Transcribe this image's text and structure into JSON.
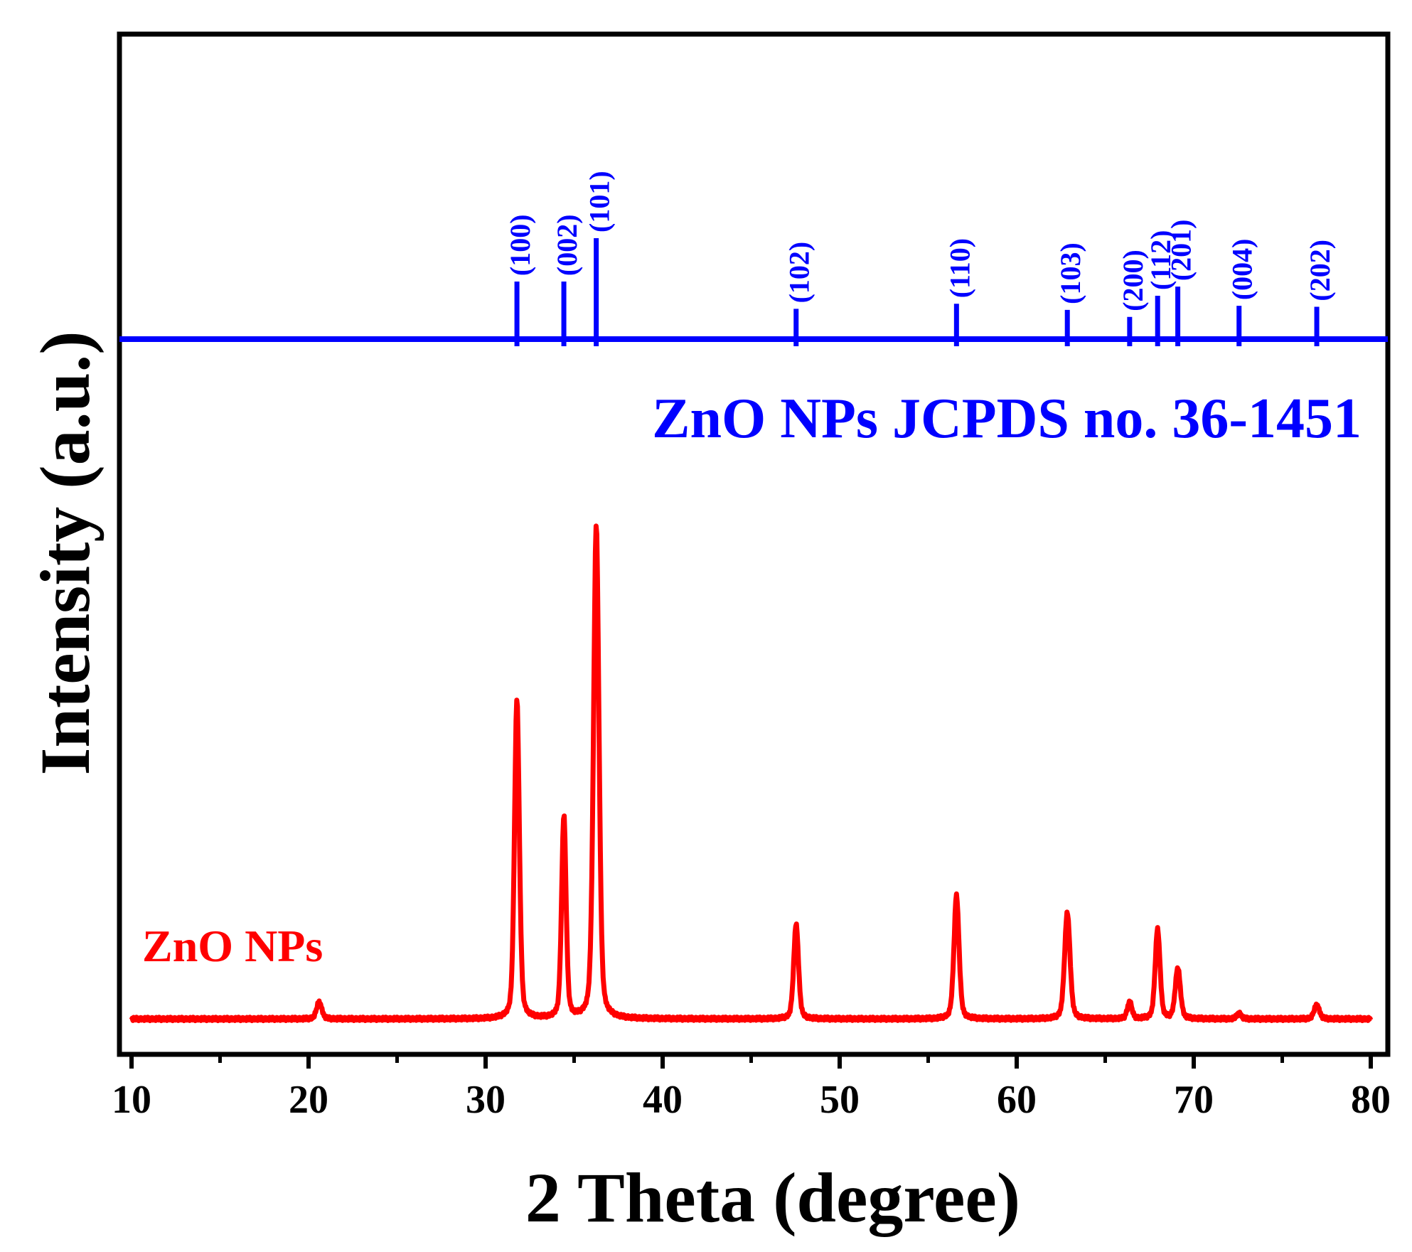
{
  "chart_data": {
    "type": "line",
    "title": "",
    "xlabel": "2 Theta (degree)",
    "ylabel": "Intensity (a.u.)",
    "xlim": [
      10,
      80
    ],
    "xticks": [
      10,
      20,
      30,
      40,
      50,
      60,
      70,
      80
    ],
    "yticks": [],
    "grid": false,
    "colors": {
      "reference": "#0000ff",
      "sample": "#ff0000",
      "axis": "#000000"
    },
    "reference": {
      "name": "ZnO NPs JCPDS no. 36-1451",
      "peaks": [
        {
          "x": 31.77,
          "height": 57,
          "hkl": "(100)"
        },
        {
          "x": 34.42,
          "height": 57,
          "hkl": "(002)"
        },
        {
          "x": 36.25,
          "height": 100,
          "hkl": "(101)"
        },
        {
          "x": 47.54,
          "height": 30,
          "hkl": "(102)"
        },
        {
          "x": 56.6,
          "height": 35,
          "hkl": "(110)"
        },
        {
          "x": 62.86,
          "height": 29,
          "hkl": "(103)"
        },
        {
          "x": 66.38,
          "height": 22,
          "hkl": "(200)"
        },
        {
          "x": 67.96,
          "height": 43,
          "hkl": "(112)"
        },
        {
          "x": 69.1,
          "height": 52,
          "hkl": "(201)"
        },
        {
          "x": 72.56,
          "height": 33,
          "hkl": "(004)"
        },
        {
          "x": 76.95,
          "height": 32,
          "hkl": "(202)"
        }
      ]
    },
    "sample": {
      "name": "ZnO NPs",
      "baseline": 0,
      "peaks": [
        {
          "x": 20.6,
          "intensity": 3,
          "fwhm": 0.35
        },
        {
          "x": 31.77,
          "intensity": 57,
          "fwhm": 0.32
        },
        {
          "x": 34.42,
          "intensity": 36,
          "fwhm": 0.3
        },
        {
          "x": 36.25,
          "intensity": 88,
          "fwhm": 0.36
        },
        {
          "x": 47.54,
          "intensity": 17,
          "fwhm": 0.32
        },
        {
          "x": 56.6,
          "intensity": 22,
          "fwhm": 0.34
        },
        {
          "x": 62.86,
          "intensity": 19,
          "fwhm": 0.36
        },
        {
          "x": 66.38,
          "intensity": 3,
          "fwhm": 0.3
        },
        {
          "x": 67.96,
          "intensity": 16,
          "fwhm": 0.32
        },
        {
          "x": 69.1,
          "intensity": 9,
          "fwhm": 0.34
        },
        {
          "x": 72.56,
          "intensity": 1,
          "fwhm": 0.3
        },
        {
          "x": 76.95,
          "intensity": 2.5,
          "fwhm": 0.35
        }
      ]
    }
  }
}
